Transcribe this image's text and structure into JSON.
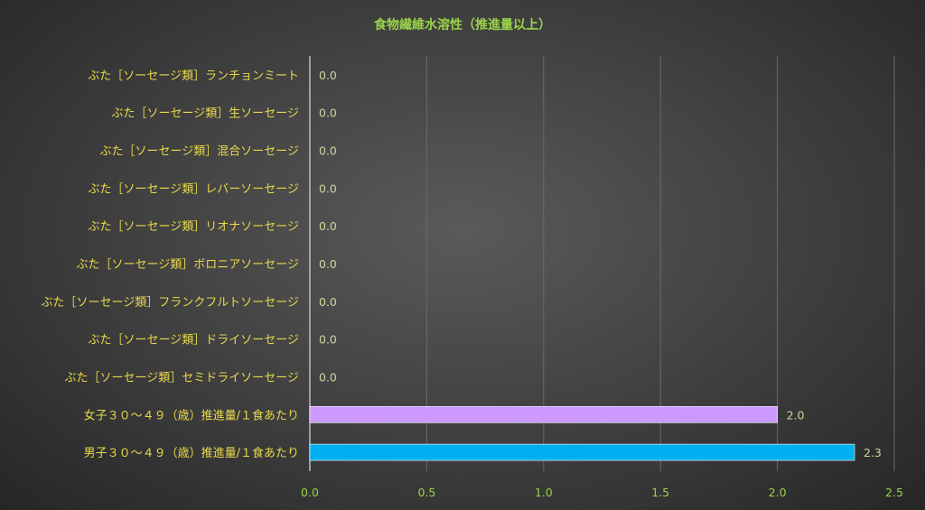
{
  "chart_data": {
    "type": "bar",
    "orientation": "horizontal",
    "title": "食物繊維水溶性（推進量以上）",
    "categories": [
      "ぶた［ソーセージ類］ランチョンミート",
      "ぶた［ソーセージ類］生ソーセージ",
      "ぶた［ソーセージ類］混合ソーセージ",
      "ぶた［ソーセージ類］レバーソーセージ",
      "ぶた［ソーセージ類］リオナソーセージ",
      "ぶた［ソーセージ類］ボロニアソーセージ",
      "ぶた［ソーセージ類］フランクフルトソーセージ",
      "ぶた［ソーセージ類］ドライソーセージ",
      "ぶた［ソーセージ類］セミドライソーセージ",
      "女子３０～４９（歳）推進量/１食あたり",
      "男子３０～４９（歳）推進量/１食あたり"
    ],
    "values": [
      0.0,
      0.0,
      0.0,
      0.0,
      0.0,
      0.0,
      0.0,
      0.0,
      0.0,
      2.0,
      2.33
    ],
    "value_labels": [
      "0.0",
      "0.0",
      "0.0",
      "0.0",
      "0.0",
      "0.0",
      "0.0",
      "0.0",
      "0.0",
      "2.0",
      "2.3"
    ],
    "bar_colors": [
      "#cc99ff",
      "#cc99ff",
      "#cc99ff",
      "#cc99ff",
      "#cc99ff",
      "#cc99ff",
      "#cc99ff",
      "#cc99ff",
      "#cc99ff",
      "#cc99ff",
      "#00b0f0"
    ],
    "xlim": [
      0,
      2.5
    ],
    "xticks": [
      0.0,
      0.5,
      1.0,
      1.5,
      2.0,
      2.5
    ],
    "xtick_labels": [
      "0.0",
      "0.5",
      "1.0",
      "1.5",
      "2.0",
      "2.5"
    ],
    "grid": true,
    "legend": "none"
  }
}
